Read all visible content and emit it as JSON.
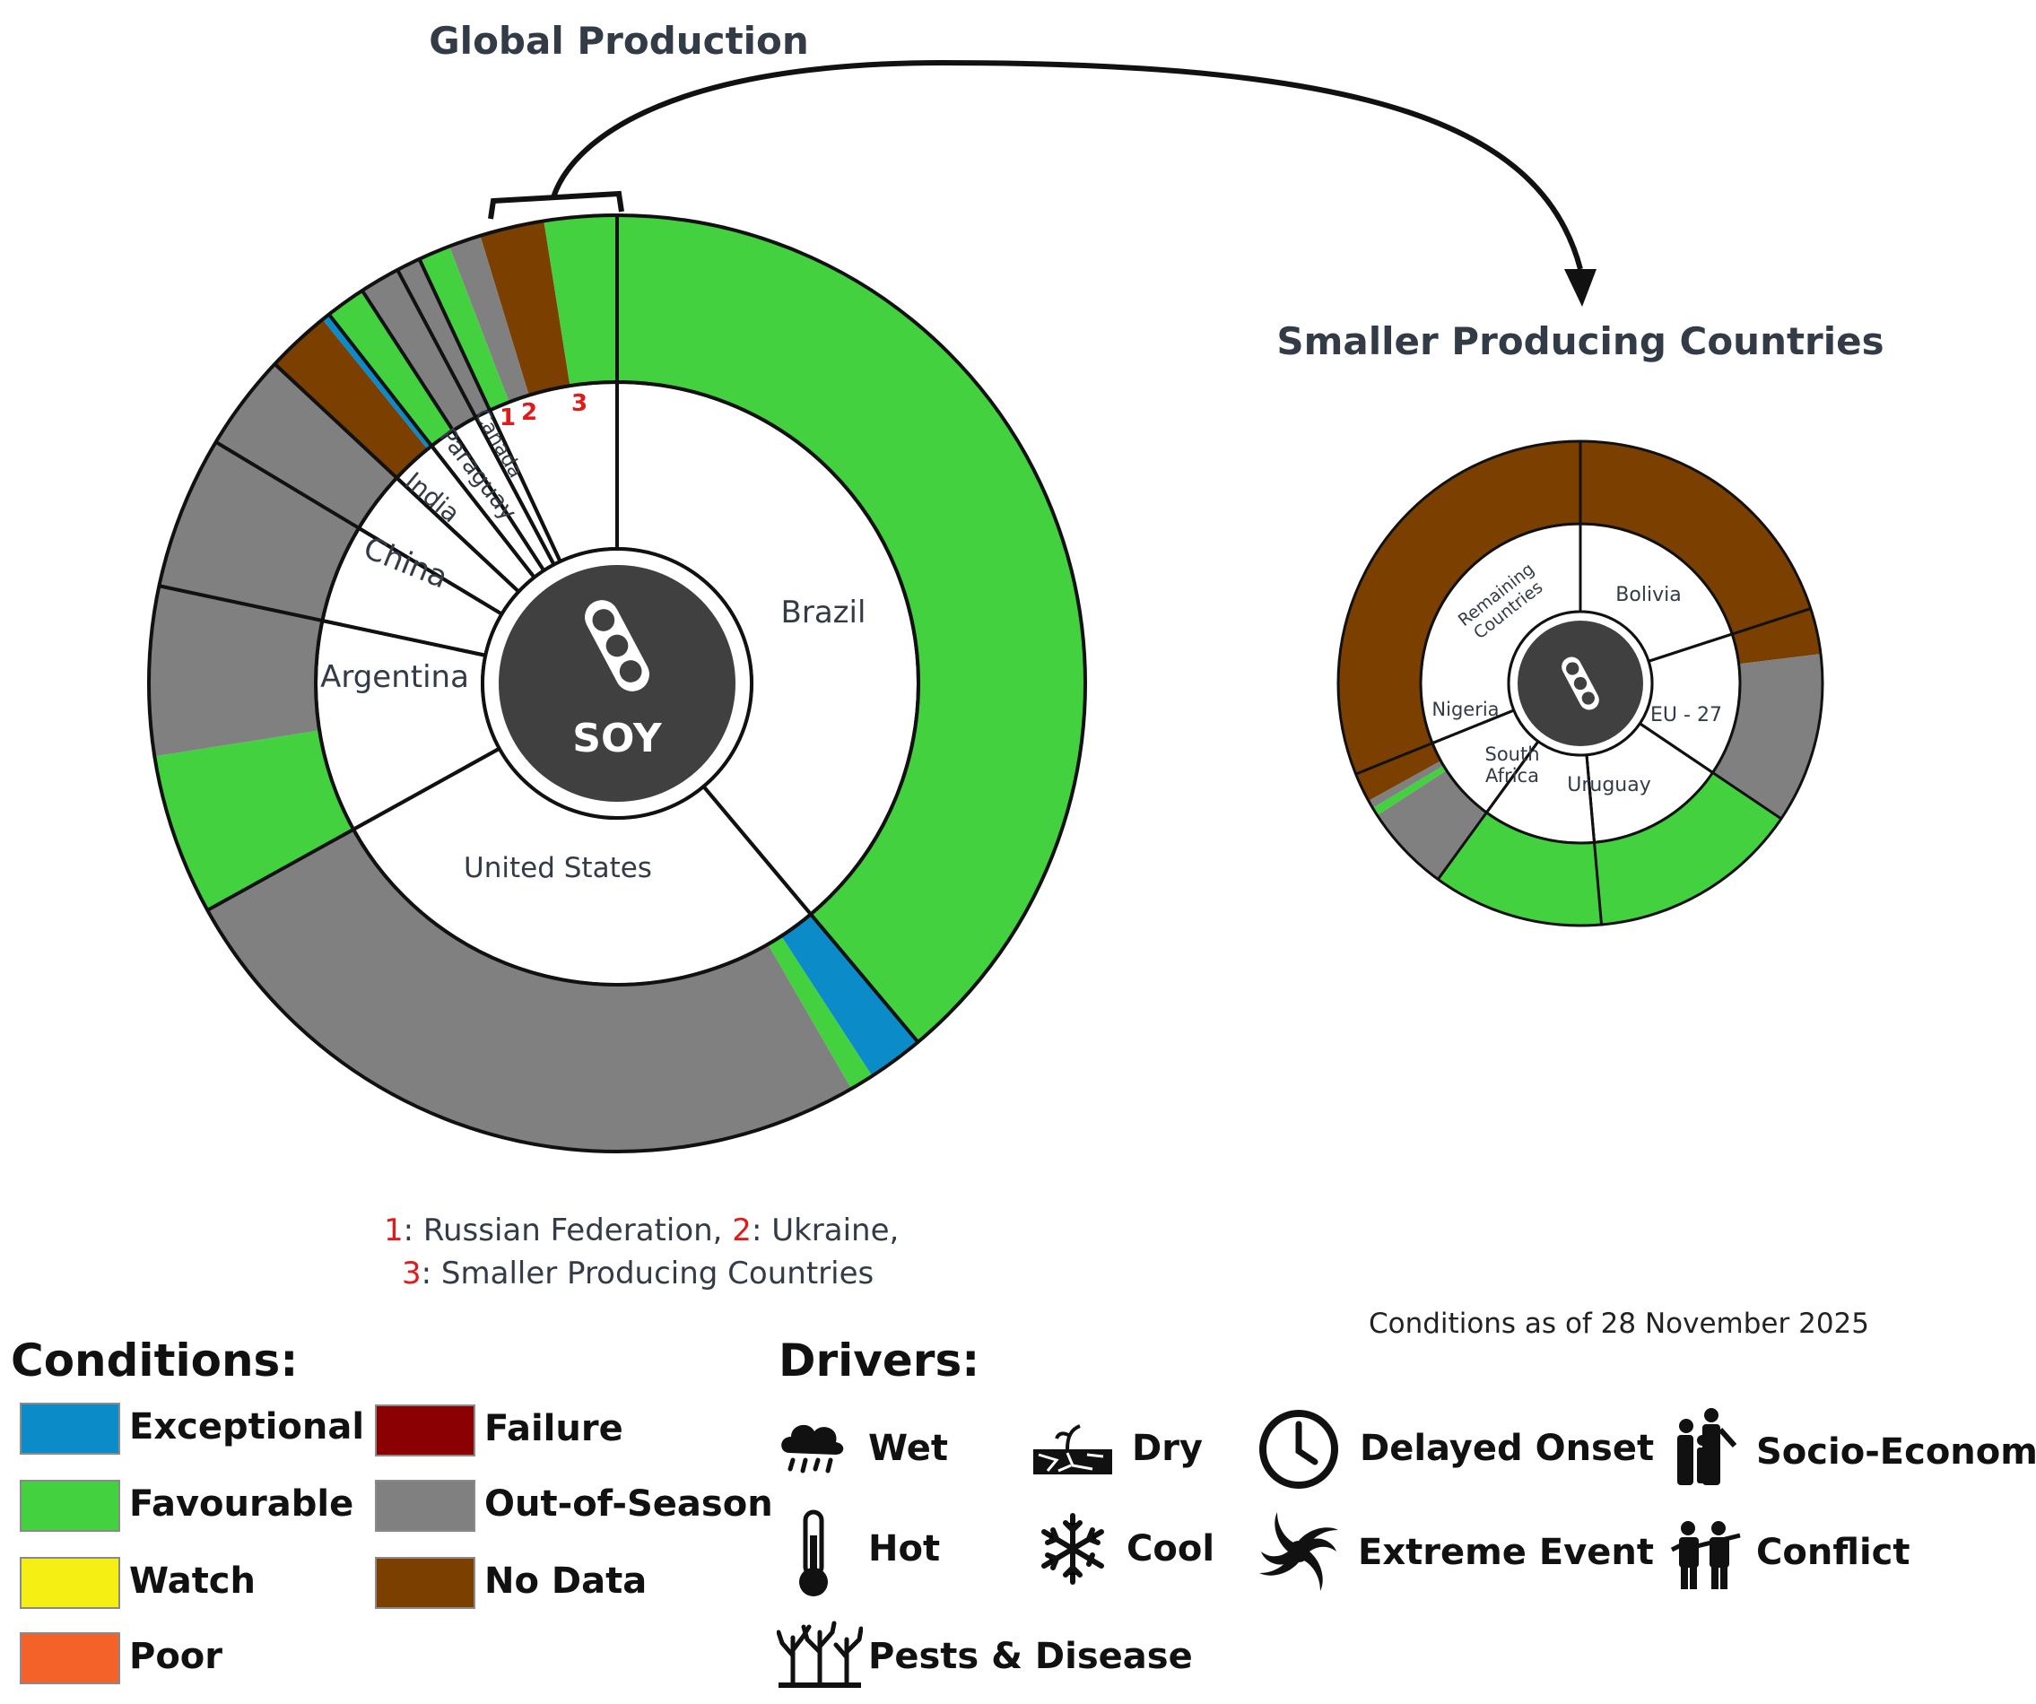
{
  "chart_data": [
    {
      "type": "pie",
      "title": "Global Production",
      "center_label": "SOY",
      "segments": [
        {
          "country": "Brazil",
          "share": 0.3889,
          "conditions": [
            {
              "condition": "Favourable",
              "share": 0.3889
            }
          ]
        },
        {
          "country": "United States",
          "share": 0.2806,
          "conditions": [
            {
              "condition": "Exceptional",
              "share": 0.0194
            },
            {
              "condition": "Favourable",
              "share": 0.0083
            },
            {
              "condition": "Out-of-Season",
              "share": 0.2528
            }
          ]
        },
        {
          "country": "Argentina",
          "share": 0.1139,
          "conditions": [
            {
              "condition": "Favourable",
              "share": 0.0556
            },
            {
              "condition": "Out-of-Season",
              "share": 0.0583
            }
          ]
        },
        {
          "country": "China",
          "share": 0.0528,
          "conditions": [
            {
              "condition": "Out-of-Season",
              "share": 0.0528
            }
          ]
        },
        {
          "country": "India",
          "share": 0.0333,
          "conditions": [
            {
              "condition": "Out-of-Season",
              "share": 0.0333
            }
          ]
        },
        {
          "country": "Paraguay",
          "share": 0.025,
          "conditions": [
            {
              "condition": "No Data",
              "share": 0.0222
            },
            {
              "condition": "Exceptional",
              "share": 0.0028
            }
          ]
        },
        {
          "country": "Canada",
          "share": 0.0139,
          "conditions": [
            {
              "condition": "Favourable",
              "share": 0.0139
            }
          ]
        },
        {
          "country": "1",
          "share": 0.0139,
          "conditions": [
            {
              "condition": "Out-of-Season",
              "share": 0.0139
            }
          ]
        },
        {
          "country": "2",
          "share": 0.0083,
          "conditions": [
            {
              "condition": "Out-of-Season",
              "share": 0.0083
            }
          ]
        },
        {
          "country": "3",
          "share": 0.0694,
          "conditions": [
            {
              "condition": "Favourable",
              "share": 0.0111
            },
            {
              "condition": "Out-of-Season",
              "share": 0.0111
            },
            {
              "condition": "No Data",
              "share": 0.0222
            },
            {
              "condition": "Favourable",
              "share": 0.025
            }
          ]
        }
      ]
    },
    {
      "type": "pie",
      "title": "Smaller Producing Countries",
      "segments": [
        {
          "country": "Bolivia",
          "share": 0.2,
          "conditions": [
            {
              "condition": "No Data",
              "share": 0.2
            }
          ]
        },
        {
          "country": "EU - 27",
          "share": 0.1444,
          "conditions": [
            {
              "condition": "No Data",
              "share": 0.0306
            },
            {
              "condition": "Out-of-Season",
              "share": 0.1139
            }
          ]
        },
        {
          "country": "Uruguay",
          "share": 0.1417,
          "conditions": [
            {
              "condition": "Favourable",
              "share": 0.1417
            }
          ]
        },
        {
          "country": "South Africa",
          "share": 0.1139,
          "conditions": [
            {
              "condition": "Favourable",
              "share": 0.1139
            }
          ]
        },
        {
          "country": "Nigeria",
          "share": 0.0889,
          "conditions": [
            {
              "condition": "Out-of-Season",
              "share": 0.0583
            },
            {
              "condition": "Favourable",
              "share": 0.0056
            },
            {
              "condition": "Out-of-Season",
              "share": 0.0056
            },
            {
              "condition": "No Data",
              "share": 0.0194
            }
          ]
        },
        {
          "country": "Remaining Countries",
          "share": 0.3111,
          "conditions": [
            {
              "condition": "No Data",
              "share": 0.3111
            }
          ]
        }
      ]
    }
  ],
  "colors": {
    "Exceptional": "#0b8bc7",
    "Favourable": "#44d13f",
    "Watch": "#f5ef13",
    "Poor": "#f56229",
    "Failure": "#8b0002",
    "Out-of-Season": "#808080",
    "No Data": "#7b3f00",
    "center": "#404040"
  },
  "footnote": {
    "n1": "1",
    "t1": ": Russian Federation, ",
    "n2": "2",
    "t2": ": Ukraine,",
    "n3": "3",
    "t3": ": Smaller Producing Countries"
  },
  "as_of": "Conditions as of 28 November 2025",
  "legend": {
    "conditions_title": "Conditions:",
    "conditions": [
      "Exceptional",
      "Favourable",
      "Watch",
      "Poor",
      "Failure",
      "Out-of-Season",
      "No Data"
    ],
    "drivers_title": "Drivers:",
    "drivers": [
      {
        "label": "Wet",
        "icon": "rain-cloud-icon"
      },
      {
        "label": "Dry",
        "icon": "cracked-earth-icon"
      },
      {
        "label": "Delayed Onset",
        "icon": "clock-icon"
      },
      {
        "label": "Socio-Economic",
        "icon": "family-icon"
      },
      {
        "label": "Hot",
        "icon": "thermometer-icon"
      },
      {
        "label": "Cool",
        "icon": "snowflake-icon"
      },
      {
        "label": "Extreme Event",
        "icon": "hurricane-icon"
      },
      {
        "label": "Conflict",
        "icon": "soldiers-icon"
      },
      {
        "label": "Pests & Disease",
        "icon": "bare-trees-icon"
      }
    ]
  }
}
